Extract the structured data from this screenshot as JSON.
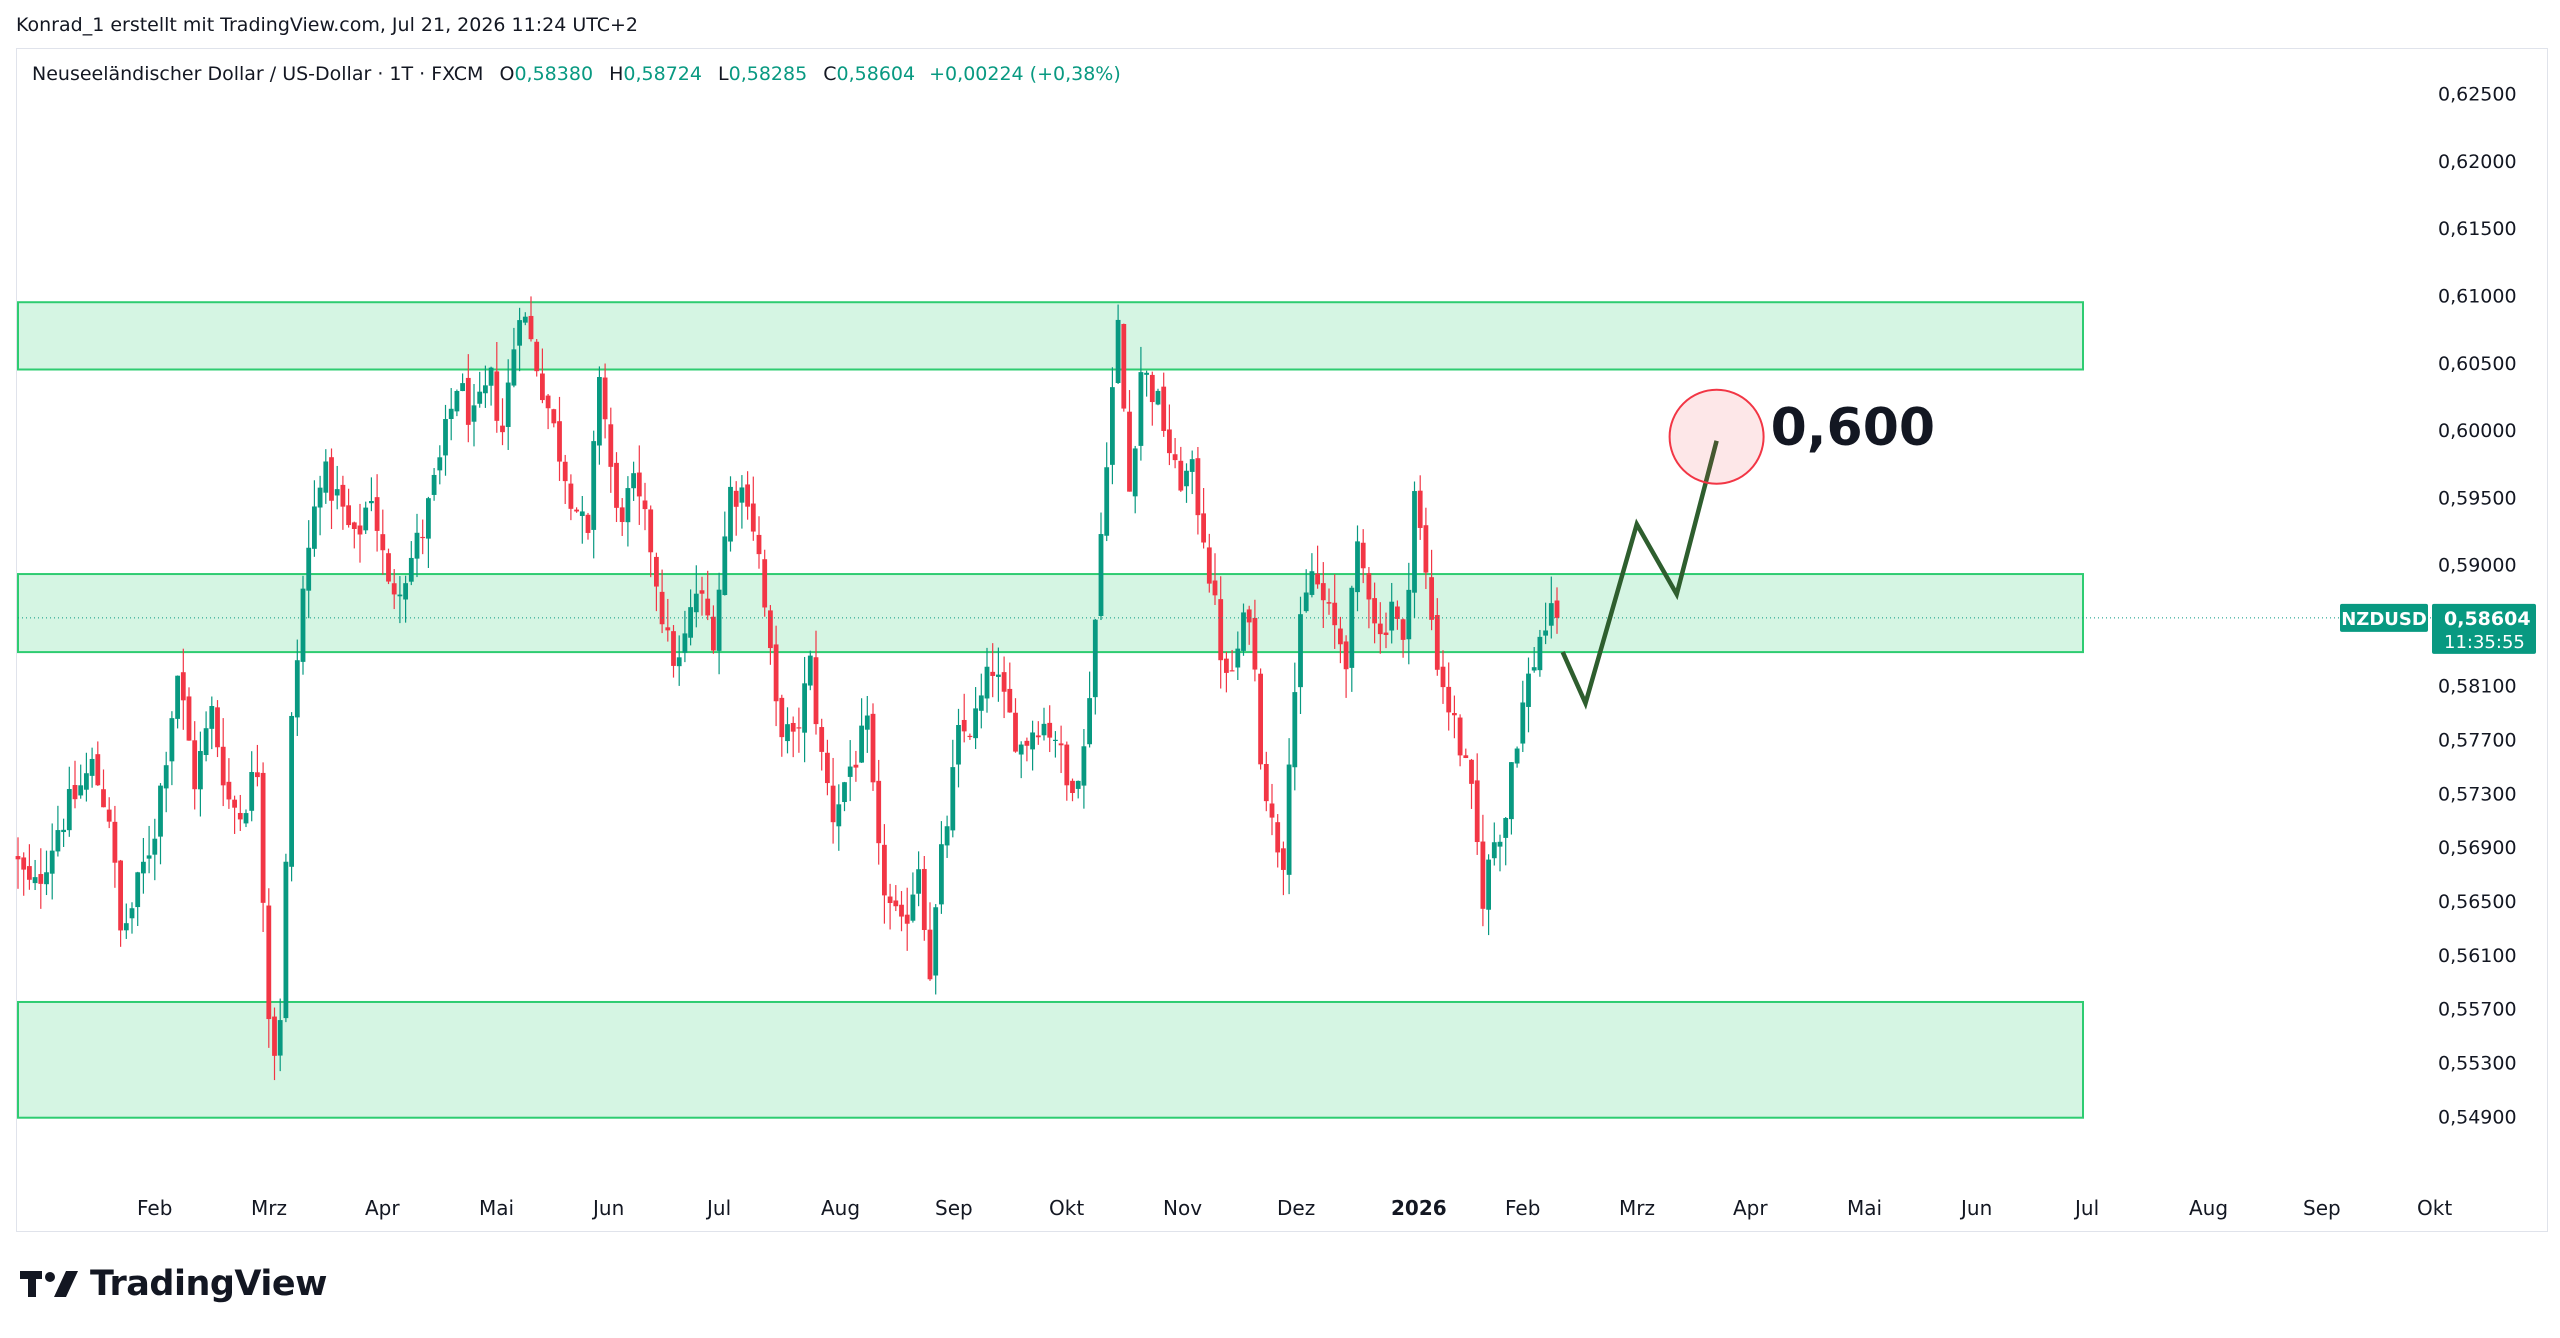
{
  "header": {
    "credit": "Konrad_1 erstellt mit TradingView.com, Jul 21, 2026 11:24 UTC+2"
  },
  "legend": {
    "symbol_desc": "Neuseeländischer Dollar / US-Dollar · 1T · FXCM",
    "open_label": "O",
    "open": "0,58380",
    "high_label": "H",
    "high": "0,58724",
    "low_label": "L",
    "low": "0,58285",
    "close_label": "C",
    "close": "0,58604",
    "change": "+0,00224 (+0,38%)"
  },
  "price_tag": {
    "symbol": "NZDUSD",
    "price": "0,58604",
    "countdown": "11:35:55"
  },
  "annotation": {
    "target_text": "0,600"
  },
  "logo": {
    "text": "TradingView"
  },
  "colors": {
    "up": "#089981",
    "down": "#f23645",
    "zone_fill": "#d5f5e3",
    "zone_border": "#2ecc71",
    "projection": "#2e5e2e",
    "target_circle": "#f23645",
    "price_tag_bg": "#089981"
  },
  "chart_data": {
    "type": "candlestick",
    "symbol": "NZDUSD",
    "ylim": [
      0.5465,
      0.6275
    ],
    "y_ticks": [
      "0,62500",
      "0,62000",
      "0,61500",
      "0,61000",
      "0,60500",
      "0,60000",
      "0,59500",
      "0,59000",
      "0,58100",
      "0,57700",
      "0,57300",
      "0,56900",
      "0,56500",
      "0,56100",
      "0,55700",
      "0,55300",
      "0,54900"
    ],
    "y_tick_values": [
      0.625,
      0.62,
      0.615,
      0.61,
      0.605,
      0.6,
      0.595,
      0.59,
      0.581,
      0.577,
      0.573,
      0.569,
      0.565,
      0.561,
      0.557,
      0.553,
      0.549
    ],
    "x_ticks": [
      {
        "label": "Feb",
        "month": 1,
        "bold": false
      },
      {
        "label": "Mrz",
        "month": 2,
        "bold": false
      },
      {
        "label": "Apr",
        "month": 3,
        "bold": false
      },
      {
        "label": "Mai",
        "month": 4,
        "bold": false
      },
      {
        "label": "Jun",
        "month": 5,
        "bold": false
      },
      {
        "label": "Jul",
        "month": 6,
        "bold": false
      },
      {
        "label": "Aug",
        "month": 7,
        "bold": false
      },
      {
        "label": "Sep",
        "month": 8,
        "bold": false
      },
      {
        "label": "Okt",
        "month": 9,
        "bold": false
      },
      {
        "label": "Nov",
        "month": 10,
        "bold": false
      },
      {
        "label": "Dez",
        "month": 11,
        "bold": false
      },
      {
        "label": "2026",
        "month": 12,
        "bold": true
      },
      {
        "label": "Feb",
        "month": 13,
        "bold": false
      },
      {
        "label": "Mrz",
        "month": 14,
        "bold": false
      },
      {
        "label": "Apr",
        "month": 15,
        "bold": false
      },
      {
        "label": "Mai",
        "month": 16,
        "bold": false
      },
      {
        "label": "Jun",
        "month": 17,
        "bold": false
      },
      {
        "label": "Jul",
        "month": 18,
        "bold": false
      },
      {
        "label": "Aug",
        "month": 19,
        "bold": false
      },
      {
        "label": "Sep",
        "month": 20,
        "bold": false
      },
      {
        "label": "Okt",
        "month": 21,
        "bold": false
      }
    ],
    "x_unit": "months since Jan 2025 start",
    "last_close": 0.58604,
    "price_path": [
      [
        0.0,
        0.5685
      ],
      [
        0.18,
        0.5655
      ],
      [
        0.4,
        0.5705
      ],
      [
        0.7,
        0.575
      ],
      [
        0.85,
        0.5715
      ],
      [
        0.95,
        0.5625
      ],
      [
        1.05,
        0.5645
      ],
      [
        1.25,
        0.5705
      ],
      [
        1.45,
        0.582
      ],
      [
        1.6,
        0.574
      ],
      [
        1.75,
        0.579
      ],
      [
        1.9,
        0.5725
      ],
      [
        2.0,
        0.5715
      ],
      [
        2.15,
        0.575
      ],
      [
        2.25,
        0.557
      ],
      [
        2.33,
        0.5525
      ],
      [
        2.45,
        0.578
      ],
      [
        2.55,
        0.588
      ],
      [
        2.7,
        0.597
      ],
      [
        2.85,
        0.595
      ],
      [
        3.0,
        0.5915
      ],
      [
        3.15,
        0.5955
      ],
      [
        3.3,
        0.588
      ],
      [
        3.45,
        0.5895
      ],
      [
        3.6,
        0.5925
      ],
      [
        3.75,
        0.5975
      ],
      [
        3.9,
        0.6035
      ],
      [
        4.05,
        0.6005
      ],
      [
        4.2,
        0.6035
      ],
      [
        4.3,
        0.6
      ],
      [
        4.45,
        0.6095
      ],
      [
        4.6,
        0.605
      ],
      [
        4.75,
        0.6
      ],
      [
        4.9,
        0.5955
      ],
      [
        5.05,
        0.5915
      ],
      [
        5.15,
        0.6045
      ],
      [
        5.3,
        0.5935
      ],
      [
        5.45,
        0.5955
      ],
      [
        5.6,
        0.5915
      ],
      [
        5.75,
        0.584
      ],
      [
        5.85,
        0.5825
      ],
      [
        6.0,
        0.588
      ],
      [
        6.15,
        0.585
      ],
      [
        6.3,
        0.5955
      ],
      [
        6.45,
        0.5955
      ],
      [
        6.55,
        0.5905
      ],
      [
        6.7,
        0.579
      ],
      [
        6.85,
        0.5765
      ],
      [
        7.0,
        0.5825
      ],
      [
        7.1,
        0.5755
      ],
      [
        7.2,
        0.5715
      ],
      [
        7.35,
        0.575
      ],
      [
        7.5,
        0.5775
      ],
      [
        7.6,
        0.568
      ],
      [
        7.7,
        0.5645
      ],
      [
        7.8,
        0.5625
      ],
      [
        7.95,
        0.568
      ],
      [
        8.0,
        0.564
      ],
      [
        8.05,
        0.56
      ],
      [
        8.15,
        0.568
      ],
      [
        8.3,
        0.577
      ],
      [
        8.45,
        0.5785
      ],
      [
        8.6,
        0.5825
      ],
      [
        8.7,
        0.5795
      ],
      [
        8.85,
        0.5765
      ],
      [
        9.0,
        0.5785
      ],
      [
        9.15,
        0.5775
      ],
      [
        9.25,
        0.5735
      ],
      [
        9.4,
        0.576
      ],
      [
        9.5,
        0.586
      ],
      [
        9.6,
        0.5985
      ],
      [
        9.7,
        0.6075
      ],
      [
        9.8,
        0.5955
      ],
      [
        9.9,
        0.6045
      ],
      [
        10.0,
        0.603
      ],
      [
        10.1,
        0.6005
      ],
      [
        10.2,
        0.5965
      ],
      [
        10.35,
        0.5965
      ],
      [
        10.45,
        0.5925
      ],
      [
        10.55,
        0.5865
      ],
      [
        10.65,
        0.581
      ],
      [
        10.75,
        0.5835
      ],
      [
        10.85,
        0.587
      ],
      [
        10.95,
        0.5765
      ],
      [
        11.05,
        0.5705
      ],
      [
        11.15,
        0.5685
      ],
      [
        11.2,
        0.5765
      ],
      [
        11.3,
        0.585
      ],
      [
        11.4,
        0.5895
      ],
      [
        11.55,
        0.586
      ],
      [
        11.7,
        0.5835
      ],
      [
        11.8,
        0.5905
      ],
      [
        11.9,
        0.5885
      ],
      [
        12.0,
        0.5845
      ],
      [
        12.1,
        0.5875
      ],
      [
        12.2,
        0.5835
      ],
      [
        12.3,
        0.5955
      ],
      [
        12.4,
        0.589
      ],
      [
        12.5,
        0.583
      ],
      [
        12.6,
        0.5795
      ],
      [
        12.7,
        0.5765
      ],
      [
        12.8,
        0.5725
      ],
      [
        12.9,
        0.5655
      ],
      [
        13.0,
        0.5695
      ],
      [
        13.1,
        0.5715
      ],
      [
        13.15,
        0.5755
      ],
      [
        13.25,
        0.5795
      ],
      [
        13.32,
        0.5822
      ],
      [
        13.37,
        0.5835
      ],
      [
        13.42,
        0.5855
      ],
      [
        13.47,
        0.5855
      ],
      [
        13.52,
        0.58604
      ]
    ],
    "zones": [
      {
        "name": "upper-zone",
        "from": 0.6045,
        "to": 0.6095
      },
      {
        "name": "middle-zone",
        "from": 0.5835,
        "to": 0.5893
      },
      {
        "name": "lower-zone",
        "from": 0.5489,
        "to": 0.5575
      }
    ],
    "projection": [
      {
        "x": 13.55,
        "y": 0.5835
      },
      {
        "x": 13.75,
        "y": 0.5797
      },
      {
        "x": 14.2,
        "y": 0.593
      },
      {
        "x": 14.55,
        "y": 0.5878
      },
      {
        "x": 14.9,
        "y": 0.5992
      }
    ],
    "target": {
      "x": 14.9,
      "y": 0.5995
    }
  }
}
